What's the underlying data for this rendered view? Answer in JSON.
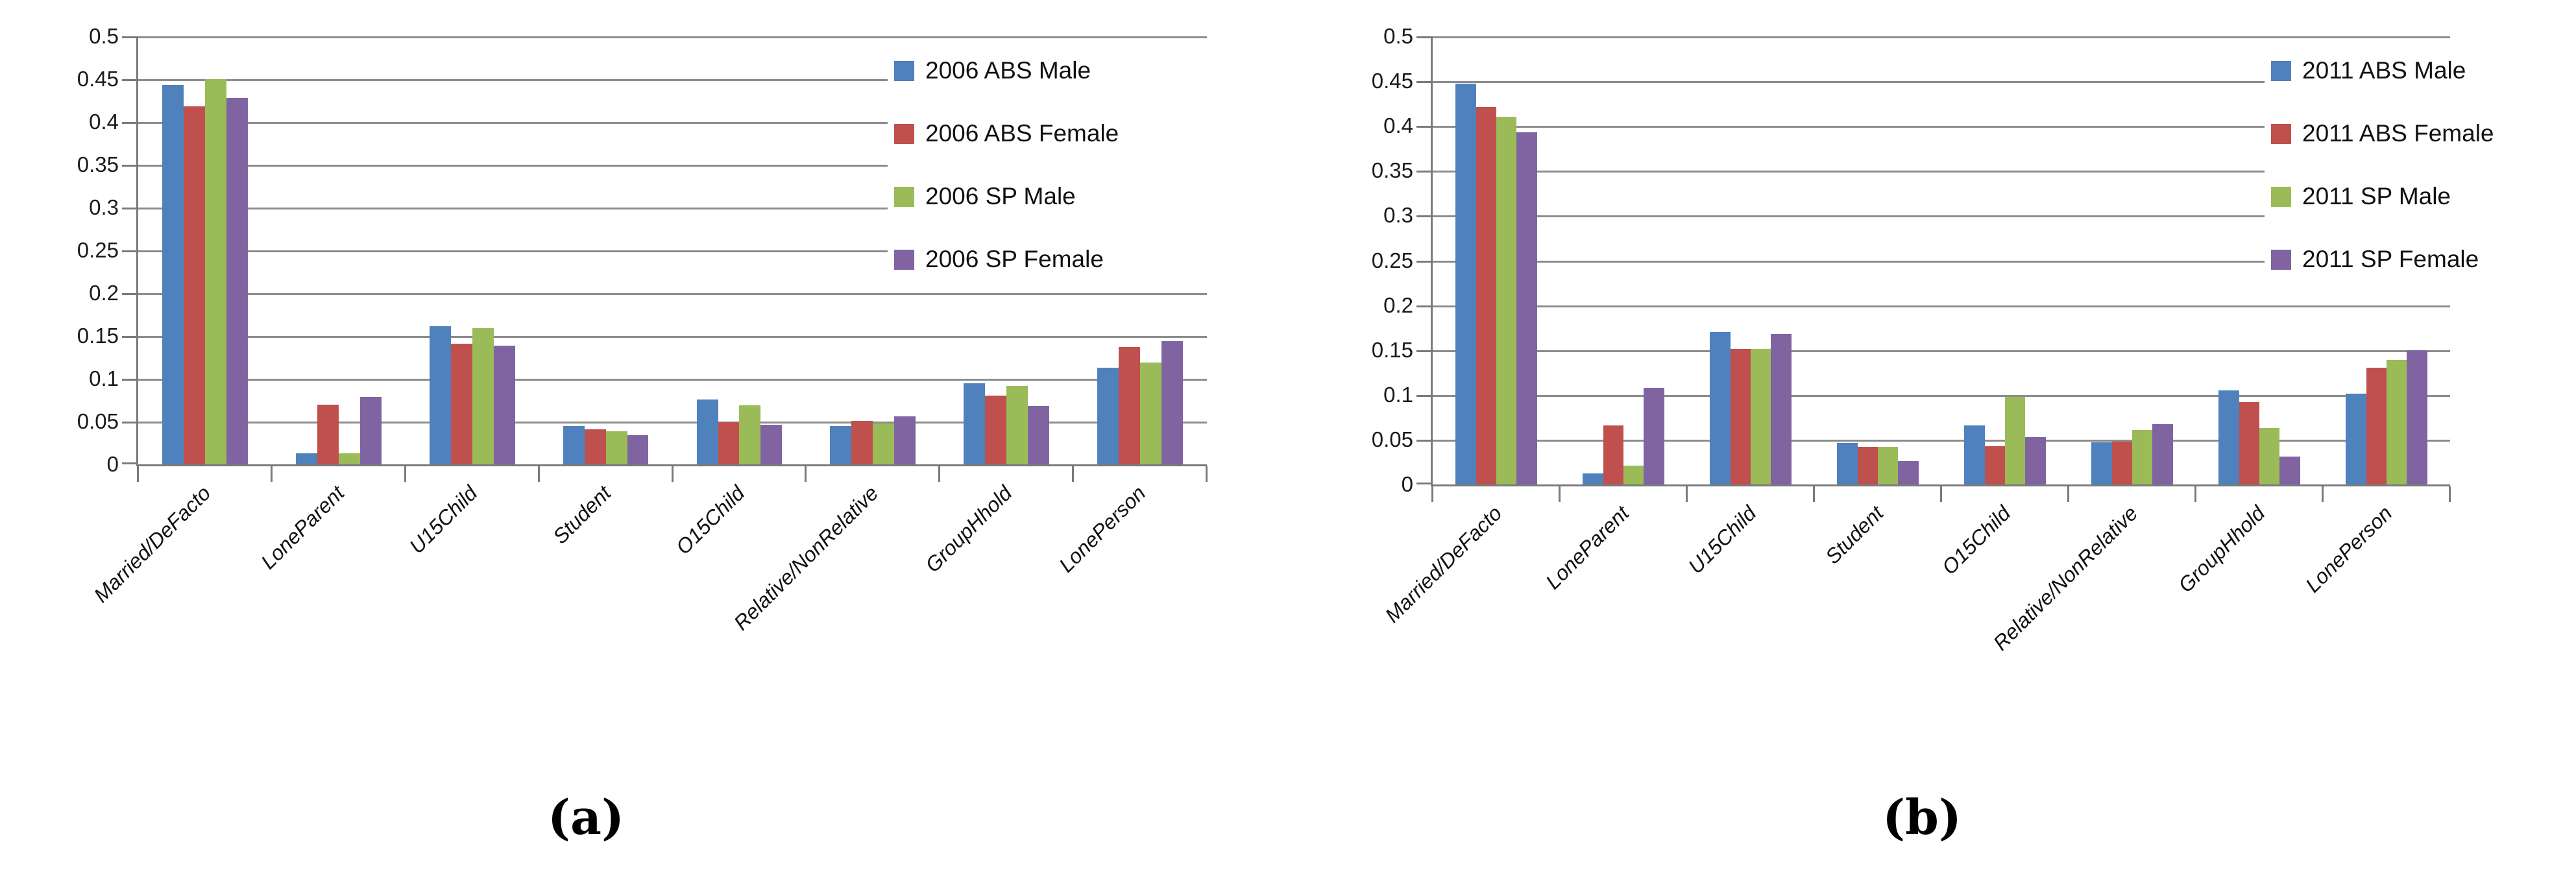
{
  "figure_title": "",
  "captions": {
    "panel_a": "(a)",
    "panel_b": "(b)"
  },
  "axis_color": "#7a7a7a",
  "grid_color": "#8c8c8c",
  "chart_data": [
    {
      "id": "a",
      "type": "bar",
      "title": "",
      "caption": "(a)",
      "xlabel": "",
      "ylabel": "",
      "ylim": [
        0,
        0.5
      ],
      "ytick_step": 0.05,
      "ytick_labels": [
        "0",
        "0.05",
        "0.1",
        "0.15",
        "0.2",
        "0.25",
        "0.3",
        "0.35",
        "0.4",
        "0.45",
        "0.5"
      ],
      "grid": true,
      "legend_position": "upper-right-overlay",
      "categories": [
        "Married/DeFacto",
        "LoneParent",
        "U15Child",
        "Student",
        "O15Child",
        "Relative/NonRelative",
        "GroupHhold",
        "LonePerson"
      ],
      "series": [
        {
          "name": "2006 ABS Male",
          "color": "#4f81bd",
          "values": [
            0.443,
            0.013,
            0.161,
            0.045,
            0.076,
            0.045,
            0.095,
            0.113
          ]
        },
        {
          "name": "2006 ABS Female",
          "color": "#c0504d",
          "values": [
            0.418,
            0.07,
            0.141,
            0.041,
            0.049,
            0.051,
            0.08,
            0.137
          ]
        },
        {
          "name": "2006 SP Male",
          "color": "#9bbb59",
          "values": [
            0.45,
            0.013,
            0.159,
            0.039,
            0.069,
            0.048,
            0.092,
            0.119
          ]
        },
        {
          "name": "2006 SP Female",
          "color": "#8064a2",
          "values": [
            0.428,
            0.079,
            0.139,
            0.034,
            0.046,
            0.056,
            0.068,
            0.144
          ]
        }
      ]
    },
    {
      "id": "b",
      "type": "bar",
      "title": "",
      "caption": "(b)",
      "xlabel": "",
      "ylabel": "",
      "ylim": [
        0,
        0.5
      ],
      "ytick_step": 0.05,
      "ytick_labels": [
        "0",
        "0.05",
        "0.1",
        "0.15",
        "0.2",
        "0.25",
        "0.3",
        "0.35",
        "0.4",
        "0.45",
        "0.5"
      ],
      "grid": true,
      "legend_position": "upper-right-overlay",
      "categories": [
        "Married/DeFacto",
        "LoneParent",
        "U15Child",
        "Student",
        "O15Child",
        "Relative/NonRelative",
        "GroupHhold",
        "LonePerson"
      ],
      "series": [
        {
          "name": "2011 ABS Male",
          "color": "#4f81bd",
          "values": [
            0.447,
            0.012,
            0.17,
            0.046,
            0.066,
            0.047,
            0.105,
            0.101
          ]
        },
        {
          "name": "2011 ABS Female",
          "color": "#c0504d",
          "values": [
            0.421,
            0.066,
            0.151,
            0.042,
            0.043,
            0.048,
            0.092,
            0.13
          ]
        },
        {
          "name": "2011 SP Male",
          "color": "#9bbb59",
          "values": [
            0.41,
            0.021,
            0.151,
            0.042,
            0.098,
            0.061,
            0.063,
            0.139
          ]
        },
        {
          "name": "2011 SP Female",
          "color": "#8064a2",
          "values": [
            0.393,
            0.108,
            0.168,
            0.026,
            0.053,
            0.067,
            0.031,
            0.15
          ]
        }
      ]
    }
  ]
}
